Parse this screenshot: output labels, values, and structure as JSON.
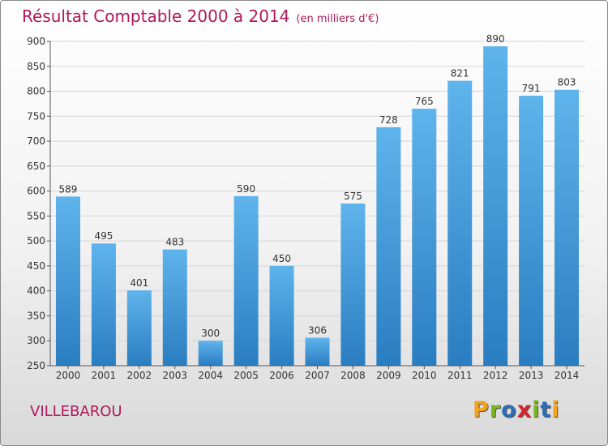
{
  "chart_data": {
    "type": "bar",
    "title": "Résultat Comptable 2000 à 2014",
    "subtitle": "(en milliers d'€)",
    "categories": [
      "2000",
      "2001",
      "2002",
      "2003",
      "2004",
      "2005",
      "2006",
      "2007",
      "2008",
      "2009",
      "2010",
      "2011",
      "2012",
      "2013",
      "2014"
    ],
    "values": [
      589,
      495,
      401,
      483,
      300,
      590,
      450,
      306,
      575,
      728,
      765,
      821,
      890,
      791,
      803
    ],
    "ylim": [
      250,
      900
    ],
    "yticks": [
      250,
      300,
      350,
      400,
      450,
      500,
      550,
      600,
      650,
      700,
      750,
      800,
      850,
      900
    ],
    "grid": true,
    "colors": {
      "bar_top": "#5fb4ec",
      "bar_bottom": "#2a7dc0",
      "title": "#b0185c"
    }
  },
  "location": "VILLEBAROU",
  "logo": {
    "letters": [
      "P",
      "r",
      "o",
      "x",
      "i",
      "t",
      "i"
    ],
    "colors": [
      "#f2a31b",
      "#7ab51d",
      "#2d6db5",
      "#d6262d",
      "#7ab51d",
      "#2d6db5",
      "#f2a31b"
    ]
  }
}
